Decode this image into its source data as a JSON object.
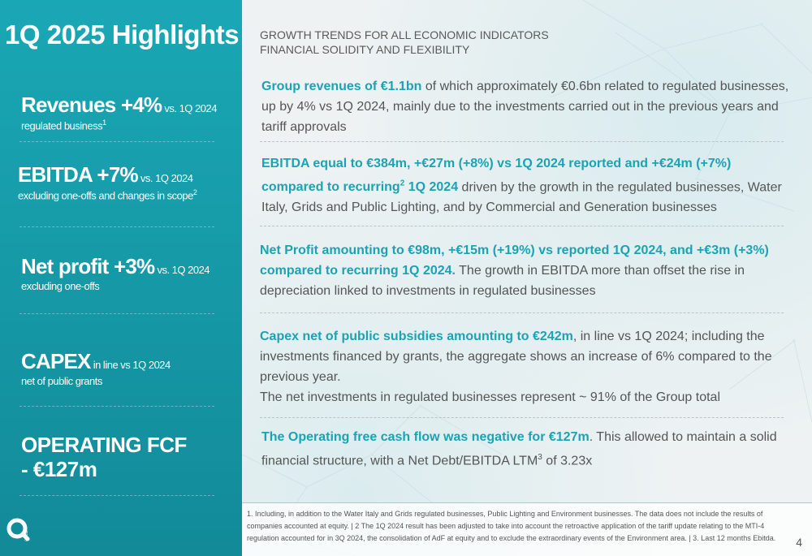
{
  "title": "1Q 2025 Highlights",
  "subtitle": {
    "line1": "GROWTH TRENDS FOR ALL ECONOMIC INDICATORS",
    "line2": "FINANCIAL SOLIDITY AND FLEXIBILITY"
  },
  "kpis": [
    {
      "big": "Revenues +4%",
      "small": " vs. 1Q 2024",
      "sub": "regulated business",
      "sub_sup": "1"
    },
    {
      "big": "EBITDA +7%",
      "small": " vs. 1Q 2024",
      "sub": "excluding one-offs and changes in scope",
      "sub_sup": "2"
    },
    {
      "big": "Net profit +3%",
      "small": " vs. 1Q 2024",
      "sub": "excluding one-offs"
    },
    {
      "big": "CAPEX",
      "small": " in line vs 1Q 2024",
      "sub": "net of public grants"
    },
    {
      "line1": "OPERATING FCF",
      "line2": "- €127m"
    }
  ],
  "paragraphs": {
    "revenues": {
      "highlight": "Group revenues of €1.1bn",
      "text": " of which approximately €0.6bn related to regulated businesses, up by 4% vs 1Q 2024, mainly due to the investments carried out in the previous years and tariff approvals"
    },
    "ebitda": {
      "highlight_a": "EBITDA equal to €384m, +€27m (+8%) vs 1Q 2024 reported and +€24m (+7%) compared to recurring",
      "highlight_sup": "2",
      "highlight_b": " 1Q 2024",
      "text": " driven by the growth in the regulated businesses, Water Italy, Grids and Public Lighting, and by Commercial and Generation businesses"
    },
    "net_profit": {
      "highlight": "Net Profit amounting to €98m, +€15m (+19%) vs reported 1Q 2024, and +€3m (+3%) compared to recurring 1Q 2024.",
      "text": " The growth in EBITDA more than offset the rise in depreciation linked to investments in regulated businesses"
    },
    "capex": {
      "highlight": "Capex net of public subsidies amounting to €242m",
      "text": ", in line vs 1Q 2024; including the investments financed by grants, the aggregate shows an increase of 6% compared to the previous year.",
      "text2": "The net investments in regulated businesses represent ~ 91% of the Group total"
    },
    "fcf": {
      "highlight": "The Operating free cash flow was negative for €127m",
      "text_a": ". This allowed to maintain a solid financial structure, with a Net Debt/EBITDA LTM",
      "text_sup": "3",
      "text_b": " of 3.23x"
    }
  },
  "footnote": "1. Including, in addition to the Water Italy and Grids regulated businesses, Public Lighting and Environment businesses. The data does not include the results of companies accounted at equity. | 2 The 1Q 2024 result has been adjusted to take into account the retroactive application of the tariff update relating to the MTI-4 regulation accounted for in 3Q 2024, the consolidation of AdF at equity and to exclude the extraordinary events of the Environment area. | 3. Last 12 months Ebitda.",
  "page_number": "4",
  "logo_text": "acea",
  "colors": {
    "teal_panel": "#1aa7b5",
    "highlight": "#1ba3b3",
    "body_text": "#555555"
  }
}
